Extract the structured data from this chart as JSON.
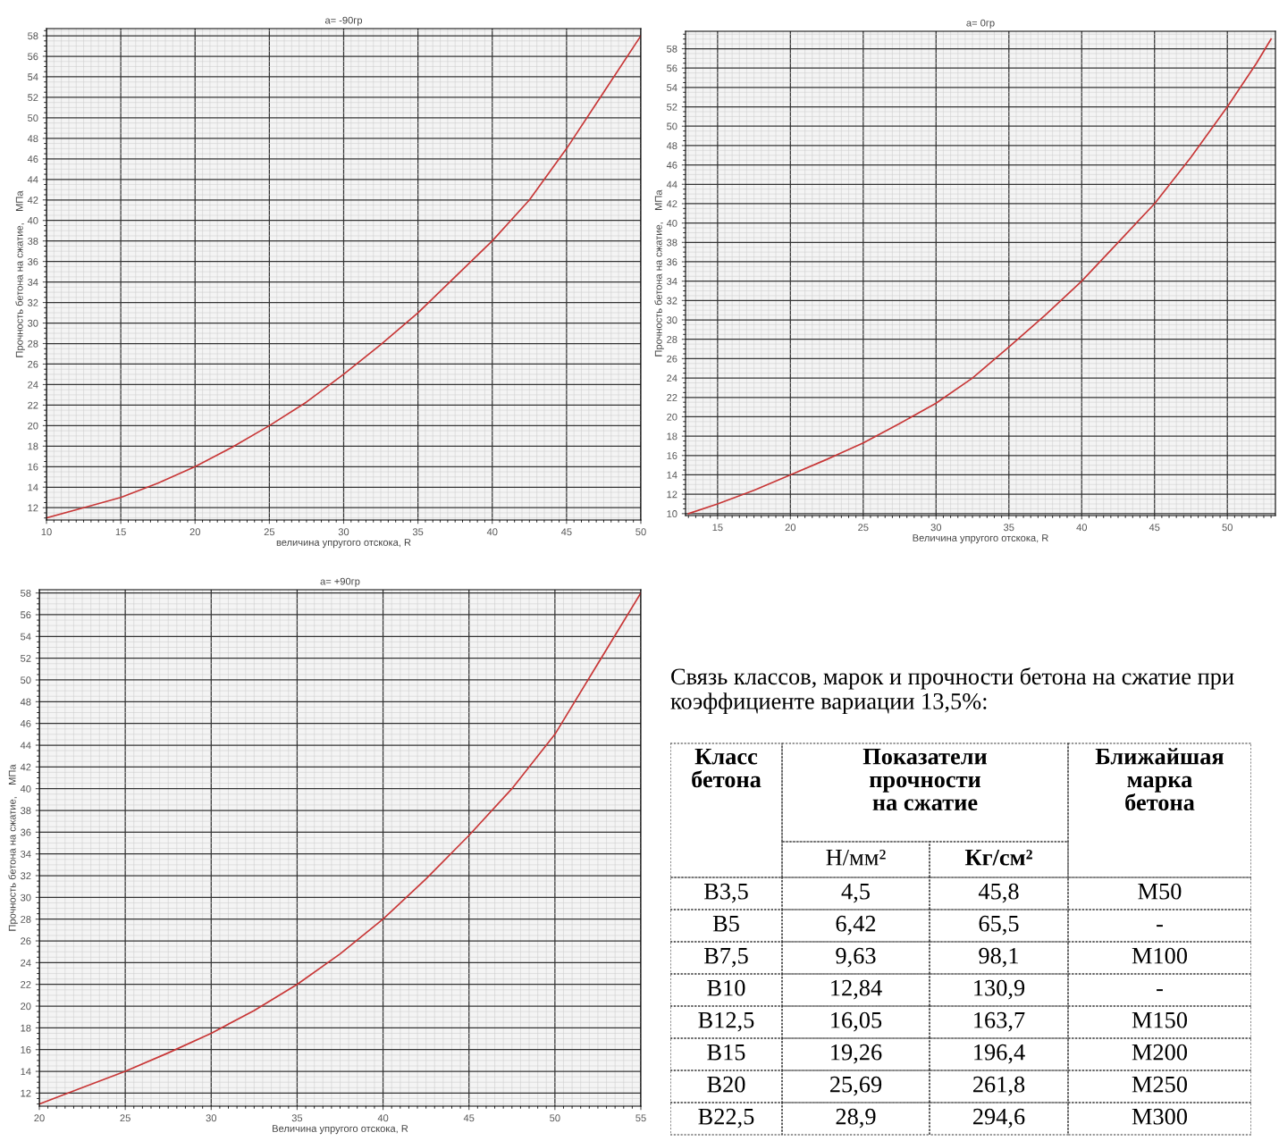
{
  "chart_data": [
    {
      "type": "line",
      "title": "a= -90гр",
      "xlabel": "величина упругого отскока, R",
      "ylabel": "Прочность бетона на сжатие,    МПа",
      "x": [
        10,
        12.5,
        15,
        17.5,
        20,
        22.5,
        25,
        27.5,
        30,
        32.5,
        35,
        37.5,
        40,
        42.5,
        45,
        47.5,
        50
      ],
      "series": [
        {
          "color": "#c83737",
          "values": [
            11,
            12,
            13,
            14.4,
            16,
            17.9,
            20,
            22.3,
            25,
            27.9,
            31,
            34.5,
            38,
            42,
            47,
            52.5,
            58
          ]
        }
      ],
      "xlim": [
        10,
        50
      ],
      "ylim": [
        10.8,
        58.7
      ],
      "xticks": [
        10,
        15,
        20,
        25,
        30,
        35,
        40,
        45,
        50
      ],
      "yticks": [
        12,
        14,
        16,
        18,
        20,
        22,
        24,
        26,
        28,
        30,
        32,
        34,
        36,
        38,
        40,
        42,
        44,
        46,
        48,
        50,
        52,
        54,
        56,
        58
      ],
      "grid": true
    },
    {
      "type": "line",
      "title": "a= 0гр",
      "xlabel": "Величина упругого отскока, R",
      "ylabel": "Прочность бетона на сжатие,    МПа",
      "x": [
        13,
        15,
        17.5,
        20,
        22.5,
        25,
        27.5,
        30,
        32.5,
        35,
        37.5,
        40,
        42.5,
        45,
        47.5,
        50,
        52,
        53
      ],
      "series": [
        {
          "color": "#c83737",
          "values": [
            10,
            11,
            12.4,
            14,
            15.6,
            17.3,
            19.3,
            21.4,
            24,
            27.2,
            30.5,
            34,
            38,
            42,
            46.8,
            52,
            56.5,
            59
          ]
        }
      ],
      "xlim": [
        12.8,
        53.3
      ],
      "ylim": [
        9.8,
        59.8
      ],
      "xticks": [
        15,
        20,
        25,
        30,
        35,
        40,
        45,
        50
      ],
      "yticks": [
        10,
        12,
        14,
        16,
        18,
        20,
        22,
        24,
        26,
        28,
        30,
        32,
        34,
        36,
        38,
        40,
        42,
        44,
        46,
        48,
        50,
        52,
        54,
        56,
        58
      ],
      "grid": true
    },
    {
      "type": "line",
      "title": "a= +90гр",
      "xlabel": "Величина упругого отскока, R",
      "ylabel": "Прочность бетона на сжатие,    МПа",
      "x": [
        20,
        22.5,
        25,
        27.5,
        30,
        32.5,
        35,
        37.5,
        40,
        42.5,
        45,
        47.5,
        50,
        52.5,
        55
      ],
      "series": [
        {
          "color": "#c83737",
          "values": [
            11,
            12.5,
            14,
            15.7,
            17.5,
            19.6,
            22,
            24.8,
            28,
            31.7,
            35.7,
            40,
            45,
            51.5,
            58
          ]
        }
      ],
      "xlim": [
        20,
        55
      ],
      "ylim": [
        10.8,
        58.3
      ],
      "xticks": [
        20,
        25,
        30,
        35,
        40,
        45,
        50,
        55
      ],
      "yticks": [
        12,
        14,
        16,
        18,
        20,
        22,
        24,
        26,
        28,
        30,
        32,
        34,
        36,
        38,
        40,
        42,
        44,
        46,
        48,
        50,
        52,
        54,
        56,
        58
      ],
      "grid": true
    },
    {
      "type": "other",
      "title": "Связь классов, марок и прочности бетона на сжатие при коэффициенте вариации 13,5%:",
      "annotations": [
        "Класс\nбетона",
        "Показатели\nпрочности\nна сжатие",
        "Ближайшая\nмарка\nбетона",
        "Н/мм²",
        "Кг/см²",
        "B3,5",
        "4,5",
        "45,8",
        "M50",
        "B5",
        "6,42",
        "65,5",
        "-",
        "B7,5",
        "9,63",
        "98,1",
        "M100",
        "B10",
        "12,84",
        "130,9",
        "-",
        "B12,5",
        "16,05",
        "163,7",
        "M150",
        "B15",
        "19,26",
        "196,4",
        "M200",
        "B20",
        "25,69",
        "261,8",
        "M250",
        "B22,5",
        "28,9",
        "294,6",
        "M300"
      ]
    }
  ]
}
